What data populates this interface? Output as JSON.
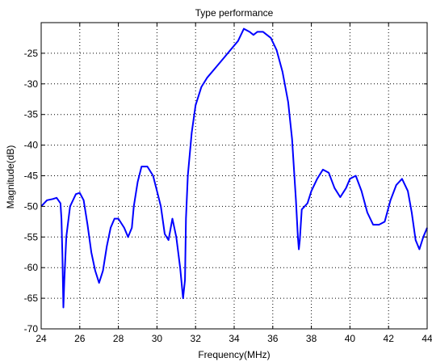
{
  "chart_data": {
    "type": "line",
    "title": "Type performance",
    "xlabel": "Frequency(MHz)",
    "ylabel": "Magnitude(dB)",
    "xlim": [
      24,
      44
    ],
    "ylim": [
      -70,
      -20
    ],
    "xticks": [
      24,
      26,
      28,
      30,
      32,
      34,
      36,
      38,
      40,
      42,
      44
    ],
    "yticks": [
      -70,
      -65,
      -60,
      -55,
      -50,
      -45,
      -40,
      -35,
      -30,
      -25
    ],
    "grid": true,
    "grid_style": "dotted",
    "line_color": "#0000ff",
    "series": [
      {
        "x": [
          24.0,
          24.3,
          24.6,
          24.8,
          25.0,
          25.05,
          25.1,
          25.15,
          25.2,
          25.3,
          25.5,
          25.8,
          26.0,
          26.2,
          26.4,
          26.6,
          26.8,
          27.0,
          27.2,
          27.4,
          27.6,
          27.8,
          28.0,
          28.3,
          28.5,
          28.7,
          28.8,
          29.0,
          29.2,
          29.5,
          29.8,
          30.0,
          30.2,
          30.4,
          30.6,
          30.8,
          31.0,
          31.2,
          31.35,
          31.45,
          31.5,
          31.6,
          31.8,
          32.0,
          32.3,
          32.6,
          33.0,
          33.4,
          33.8,
          34.2,
          34.5,
          34.8,
          35.0,
          35.2,
          35.5,
          35.9,
          36.2,
          36.5,
          36.8,
          37.0,
          37.1,
          37.2,
          37.3,
          37.35,
          37.4,
          37.5,
          37.8,
          38.0,
          38.3,
          38.6,
          38.9,
          39.2,
          39.5,
          39.8,
          40.0,
          40.3,
          40.6,
          40.9,
          41.2,
          41.5,
          41.8,
          42.1,
          42.4,
          42.7,
          43.0,
          43.2,
          43.4,
          43.6,
          43.8,
          44.0
        ],
        "y": [
          -50.0,
          -49.0,
          -48.8,
          -48.6,
          -49.5,
          -52.0,
          -58.0,
          -66.5,
          -62.0,
          -55.0,
          -50.0,
          -48.0,
          -47.8,
          -49.0,
          -53.0,
          -57.5,
          -60.5,
          -62.5,
          -60.5,
          -56.5,
          -53.5,
          -52.0,
          -52.0,
          -53.5,
          -55.0,
          -53.5,
          -50.0,
          -46.0,
          -43.5,
          -43.5,
          -45.0,
          -47.5,
          -50.0,
          -54.5,
          -55.5,
          -52.0,
          -55.0,
          -60.0,
          -65.0,
          -62.0,
          -52.0,
          -45.0,
          -38.0,
          -33.5,
          -30.5,
          -29.0,
          -27.5,
          -26.0,
          -24.5,
          -23.0,
          -21.0,
          -21.5,
          -22.0,
          -21.5,
          -21.5,
          -22.5,
          -24.5,
          -28.0,
          -33.0,
          -39.0,
          -44.0,
          -49.0,
          -55.0,
          -57.0,
          -55.5,
          -50.5,
          -49.5,
          -47.5,
          -45.5,
          -44.0,
          -44.5,
          -47.0,
          -48.5,
          -47.0,
          -45.5,
          -45.0,
          -47.5,
          -51.0,
          -53.0,
          -53.0,
          -52.5,
          -49.0,
          -46.5,
          -45.5,
          -47.5,
          -51.0,
          -55.5,
          -57.0,
          -55.0,
          -53.5
        ]
      }
    ]
  }
}
